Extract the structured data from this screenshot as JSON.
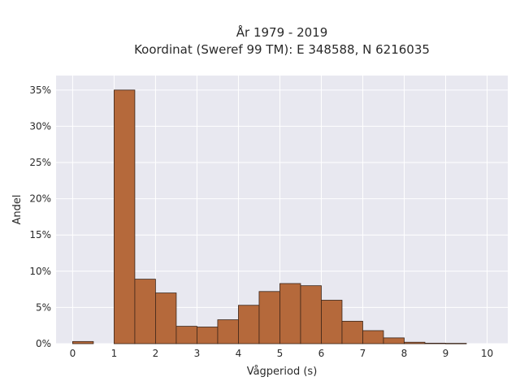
{
  "chart_data": {
    "type": "bar",
    "title": [
      "År 1979 - 2019",
      "Koordinat (Sweref 99 TM): E 348588, N 6216035"
    ],
    "xlabel": "Vågperiod (s)",
    "ylabel": "Andel",
    "xlim": [
      -0.4,
      10.5
    ],
    "ylim": [
      0,
      0.37
    ],
    "x_ticks": [
      0,
      1,
      2,
      3,
      4,
      5,
      6,
      7,
      8,
      9,
      10
    ],
    "x_tick_labels": [
      "0",
      "1",
      "2",
      "3",
      "4",
      "5",
      "6",
      "7",
      "8",
      "9",
      "10"
    ],
    "y_ticks": [
      0,
      0.05,
      0.1,
      0.15,
      0.2,
      0.25,
      0.3,
      0.35
    ],
    "y_tick_labels": [
      "0%",
      "5%",
      "10%",
      "15%",
      "20%",
      "25%",
      "30%",
      "35%"
    ],
    "grid": true,
    "bin_width": 0.5,
    "bins": [
      {
        "start": 0.0,
        "value": 0.003
      },
      {
        "start": 1.0,
        "value": 0.35
      },
      {
        "start": 1.5,
        "value": 0.089
      },
      {
        "start": 2.0,
        "value": 0.07
      },
      {
        "start": 2.5,
        "value": 0.024
      },
      {
        "start": 3.0,
        "value": 0.023
      },
      {
        "start": 3.5,
        "value": 0.033
      },
      {
        "start": 4.0,
        "value": 0.053
      },
      {
        "start": 4.5,
        "value": 0.072
      },
      {
        "start": 5.0,
        "value": 0.083
      },
      {
        "start": 5.5,
        "value": 0.08
      },
      {
        "start": 6.0,
        "value": 0.06
      },
      {
        "start": 6.5,
        "value": 0.031
      },
      {
        "start": 7.0,
        "value": 0.018
      },
      {
        "start": 7.5,
        "value": 0.008
      },
      {
        "start": 8.0,
        "value": 0.002
      },
      {
        "start": 8.5,
        "value": 0.0007
      },
      {
        "start": 9.0,
        "value": 0.0005
      }
    ],
    "colors": {
      "bar_fill": "#b5693b",
      "bar_edge": "#3a2418",
      "plot_bg": "#e8e8f0",
      "grid": "#ffffff"
    }
  }
}
